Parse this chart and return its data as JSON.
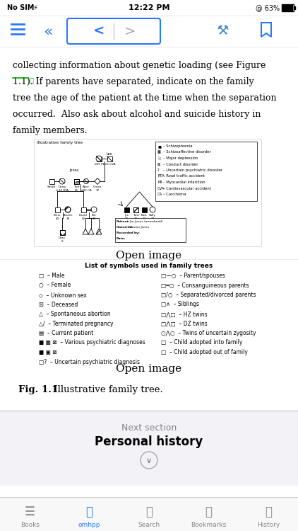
{
  "bg_color": "#f2f2f7",
  "content_bg": "#ffffff",
  "status_bar_left": "No SIM",
  "status_bar_center": "12:22 PM",
  "status_bar_right": "@ 63%",
  "fig_caption_bold": "Fig. 1.1",
  "fig_caption_normal": " Illustrative family tree.",
  "open_image_text": "Open image",
  "next_section_label": "Next section",
  "next_section_title": "Personal history",
  "bottom_tabs": [
    "Books",
    "omhpp",
    "Search",
    "Bookmarks",
    "History"
  ],
  "active_tab": "omhpp",
  "body_lines": [
    "collecting information about genetic loading (see Figure",
    "1.1). If parents have separated, indicate on the family",
    "tree the age of the patient at the time when the separation",
    "occurred.  Also ask about alcohol and suicide history in",
    "family members."
  ]
}
